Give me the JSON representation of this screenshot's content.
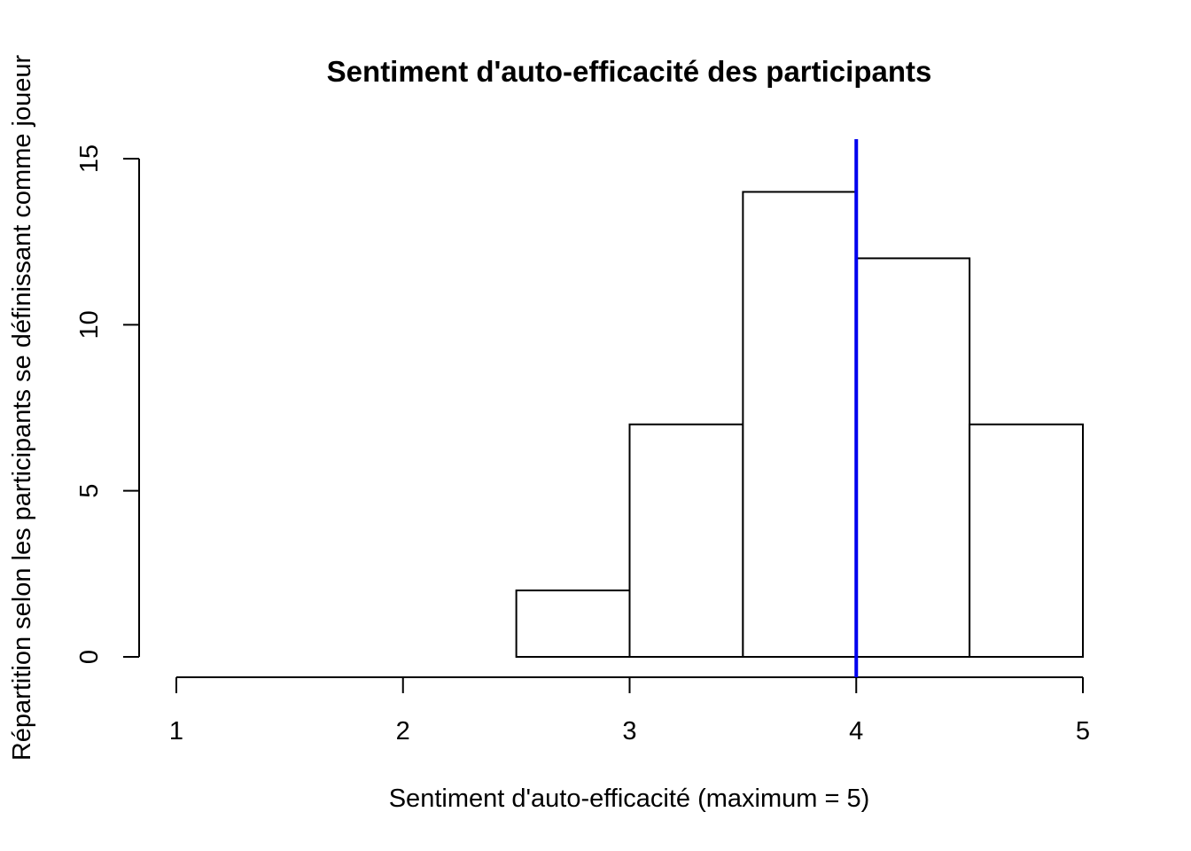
{
  "chart_data": {
    "type": "bar",
    "title": "Sentiment d'auto-efficacité des participants",
    "xlabel": "Sentiment d'auto-efficacité (maximum = 5)",
    "ylabel": "Répartition selon les participants se définissant comme joueur",
    "xlim": [
      1,
      5
    ],
    "ylim": [
      0,
      15
    ],
    "x_ticks": [
      "1",
      "2",
      "3",
      "4",
      "5"
    ],
    "y_ticks": [
      "0",
      "5",
      "10",
      "15"
    ],
    "bins": [
      {
        "from": 2.5,
        "to": 3.0,
        "count": 2
      },
      {
        "from": 3.0,
        "to": 3.5,
        "count": 7
      },
      {
        "from": 3.5,
        "to": 4.0,
        "count": 14
      },
      {
        "from": 4.0,
        "to": 4.5,
        "count": 12
      },
      {
        "from": 4.5,
        "to": 5.0,
        "count": 7
      }
    ],
    "reference_line": {
      "x": 4,
      "color": "#0000ee"
    },
    "grid": false,
    "legend": "none"
  }
}
